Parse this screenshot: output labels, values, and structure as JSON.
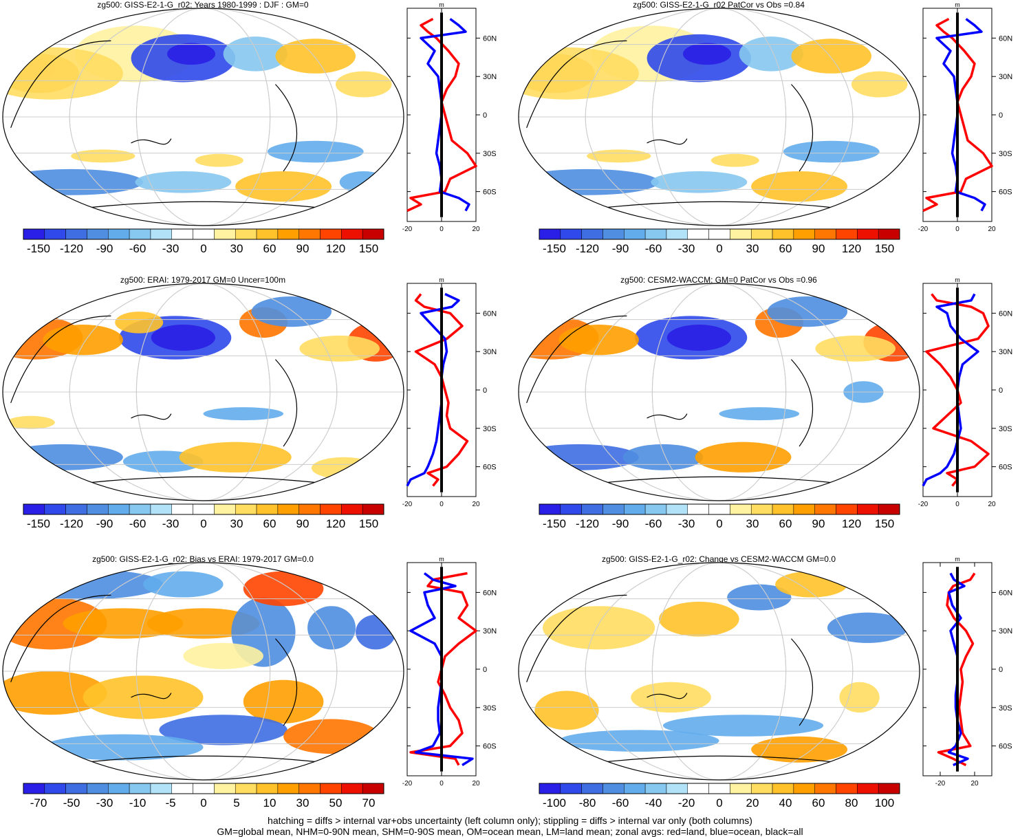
{
  "chart_data": [
    {
      "type": "heatmap",
      "title": "zg500: GISS-E2-1-G_r02: Years 1980-1999 : DJF : GM=0",
      "colorbar_labels": [
        "-150",
        "-120",
        "-90",
        "-60",
        "-30",
        "0",
        "30",
        "60",
        "90",
        "120",
        "150"
      ],
      "zonal_profile": {
        "xlabel": "m",
        "xlim": [
          -20,
          20
        ],
        "xticks": [
          "-20",
          "0",
          "20"
        ],
        "lat_ticks": [
          "60N",
          "30N",
          "0",
          "30S",
          "60S"
        ],
        "series": [
          {
            "name": "land",
            "color": "#ff0000",
            "lat": [
              75,
              70,
              65,
              60,
              50,
              40,
              30,
              20,
              10,
              0,
              -10,
              -20,
              -30,
              -40,
              -50,
              -60,
              -65,
              -70,
              -75
            ],
            "values": [
              -5,
              -12,
              -8,
              -3,
              4,
              10,
              8,
              3,
              0,
              2,
              4,
              6,
              15,
              20,
              5,
              2,
              -18,
              -12,
              -20
            ]
          },
          {
            "name": "ocean",
            "color": "#0000ff",
            "lat": [
              75,
              70,
              65,
              60,
              50,
              40,
              30,
              20,
              10,
              0,
              -10,
              -20,
              -30,
              -40,
              -50,
              -60,
              -65,
              -70,
              -75
            ],
            "values": [
              5,
              10,
              14,
              -12,
              -4,
              -8,
              -2,
              -1,
              0,
              0,
              -1,
              -2,
              -3,
              -1,
              0,
              -1,
              10,
              16,
              14
            ]
          },
          {
            "name": "all",
            "color": "#000000",
            "lat": [
              80,
              -80
            ],
            "values": [
              0,
              0
            ]
          }
        ]
      }
    },
    {
      "type": "heatmap",
      "title": "zg500: GISS-E2-1-G_r02 PatCor vs Obs =0.84",
      "colorbar_labels": [
        "-150",
        "-120",
        "-90",
        "-60",
        "-30",
        "0",
        "30",
        "60",
        "90",
        "120",
        "150"
      ],
      "zonal_profile": {
        "xlabel": "m",
        "xlim": [
          -20,
          20
        ],
        "xticks": [
          "-20",
          "0",
          "20"
        ],
        "lat_ticks": [
          "60N",
          "30N",
          "0",
          "30S",
          "60S"
        ],
        "series": [
          {
            "name": "land",
            "color": "#ff0000",
            "lat": [
              75,
              70,
              65,
              60,
              50,
              40,
              30,
              20,
              10,
              0,
              -10,
              -20,
              -30,
              -40,
              -50,
              -60,
              -65,
              -70,
              -75
            ],
            "values": [
              -5,
              -12,
              -8,
              -3,
              4,
              10,
              8,
              3,
              0,
              2,
              4,
              6,
              15,
              20,
              5,
              2,
              -18,
              -12,
              -20
            ]
          },
          {
            "name": "ocean",
            "color": "#0000ff",
            "lat": [
              75,
              70,
              65,
              60,
              50,
              40,
              30,
              20,
              10,
              0,
              -10,
              -20,
              -30,
              -40,
              -50,
              -60,
              -65,
              -70,
              -75
            ],
            "values": [
              5,
              10,
              14,
              -12,
              -4,
              -8,
              -2,
              -1,
              0,
              0,
              -1,
              -2,
              -3,
              -1,
              0,
              -1,
              10,
              16,
              14
            ]
          },
          {
            "name": "all",
            "color": "#000000",
            "lat": [
              80,
              -80
            ],
            "values": [
              0,
              0
            ]
          }
        ]
      }
    },
    {
      "type": "heatmap",
      "title": "zg500: ERAI: 1979-2017 GM=0 Uncer=100m",
      "colorbar_labels": [
        "-150",
        "-120",
        "-90",
        "-60",
        "-30",
        "0",
        "30",
        "60",
        "90",
        "120",
        "150"
      ],
      "zonal_profile": {
        "xlabel": "m",
        "xlim": [
          -20,
          20
        ],
        "xticks": [
          "-20",
          "0",
          "20"
        ],
        "lat_ticks": [
          "60N",
          "30N",
          "0",
          "30S",
          "60S"
        ],
        "series": [
          {
            "name": "land",
            "color": "#ff0000",
            "lat": [
              75,
              70,
              65,
              60,
              50,
              40,
              30,
              20,
              10,
              0,
              -10,
              -20,
              -30,
              -40,
              -50,
              -60,
              -65,
              -70,
              -75
            ],
            "values": [
              -12,
              -15,
              -10,
              5,
              12,
              3,
              -15,
              -4,
              0,
              2,
              4,
              3,
              5,
              15,
              10,
              3,
              -8,
              -2,
              -5
            ]
          },
          {
            "name": "ocean",
            "color": "#0000ff",
            "lat": [
              75,
              70,
              65,
              60,
              50,
              40,
              30,
              20,
              10,
              0,
              -10,
              -20,
              -30,
              -40,
              -50,
              -60,
              -65,
              -70,
              -75
            ],
            "values": [
              2,
              10,
              6,
              -12,
              -5,
              2,
              3,
              1,
              0,
              0,
              0,
              -1,
              -2,
              -3,
              -5,
              -8,
              -10,
              -18,
              -20
            ]
          },
          {
            "name": "all",
            "color": "#000000",
            "lat": [
              80,
              -80
            ],
            "values": [
              0,
              0
            ]
          }
        ]
      }
    },
    {
      "type": "heatmap",
      "title": "zg500: CESM2-WACCM: GM=0 PatCor vs Obs =0.96",
      "colorbar_labels": [
        "-150",
        "-120",
        "-90",
        "-60",
        "-30",
        "0",
        "30",
        "60",
        "90",
        "120",
        "150"
      ],
      "zonal_profile": {
        "xlabel": "m",
        "xlim": [
          -20,
          20
        ],
        "xticks": [
          "-20",
          "0",
          "20"
        ],
        "lat_ticks": [
          "60N",
          "30N",
          "0",
          "30S",
          "60S"
        ],
        "series": [
          {
            "name": "land",
            "color": "#ff0000",
            "lat": [
              75,
              70,
              65,
              60,
              50,
              40,
              30,
              20,
              10,
              0,
              -10,
              -20,
              -30,
              -40,
              -50,
              -60,
              -65,
              -70,
              -75
            ],
            "values": [
              -15,
              -12,
              8,
              15,
              18,
              12,
              -18,
              -10,
              -4,
              0,
              2,
              -6,
              -14,
              8,
              18,
              10,
              -6,
              0,
              -3
            ]
          },
          {
            "name": "ocean",
            "color": "#0000ff",
            "lat": [
              75,
              70,
              65,
              60,
              50,
              40,
              30,
              20,
              10,
              0,
              -10,
              -20,
              -30,
              -40,
              -50,
              -60,
              -65,
              -70,
              -75
            ],
            "values": [
              10,
              8,
              -12,
              -6,
              -4,
              2,
              12,
              3,
              1,
              0,
              0,
              1,
              2,
              0,
              -2,
              -6,
              -10,
              -18,
              -20
            ]
          },
          {
            "name": "all",
            "color": "#000000",
            "lat": [
              80,
              -80
            ],
            "values": [
              0,
              0
            ]
          }
        ]
      }
    },
    {
      "type": "heatmap",
      "title": "zg500: GISS-E2-1-G_r02: Bias vs ERAI: 1979-2017 GM=0.0",
      "colorbar_labels": [
        "-70",
        "-50",
        "-30",
        "-10",
        "-5",
        "0",
        "5",
        "10",
        "30",
        "50",
        "70"
      ],
      "zonal_profile": {
        "xlabel": "m",
        "xlim": [
          -20,
          20
        ],
        "xticks": [
          "-20",
          "0",
          "20"
        ],
        "lat_ticks": [
          "60N",
          "30N",
          "0",
          "30S",
          "60S"
        ],
        "series": [
          {
            "name": "land",
            "color": "#ff0000",
            "lat": [
              75,
              70,
              65,
              60,
              50,
              40,
              30,
              20,
              10,
              0,
              -10,
              -20,
              -30,
              -40,
              -50,
              -60,
              -65,
              -70,
              -75
            ],
            "values": [
              15,
              -5,
              -8,
              12,
              15,
              10,
              20,
              10,
              2,
              0,
              -2,
              2,
              5,
              10,
              12,
              5,
              -18,
              8,
              10
            ]
          },
          {
            "name": "ocean",
            "color": "#0000ff",
            "lat": [
              75,
              70,
              65,
              60,
              50,
              40,
              30,
              20,
              10,
              0,
              -10,
              -20,
              -30,
              -40,
              -50,
              -60,
              -65,
              -70,
              -75
            ],
            "values": [
              -10,
              -5,
              8,
              -10,
              -8,
              -4,
              -18,
              -4,
              0,
              0,
              0,
              -1,
              -2,
              -2,
              -1,
              -5,
              -15,
              18,
              12
            ]
          },
          {
            "name": "all",
            "color": "#000000",
            "lat": [
              80,
              -80
            ],
            "values": [
              0,
              0
            ]
          }
        ]
      }
    },
    {
      "type": "heatmap",
      "title": "zg500: GISS-E2-1-G_r02: Change vs CESM2-WACCM GM=0.0",
      "colorbar_labels": [
        "-100",
        "-80",
        "-60",
        "-40",
        "-20",
        "0",
        "20",
        "40",
        "60",
        "80",
        "100"
      ],
      "zonal_profile": {
        "xlabel": "m",
        "xlim": [
          -40,
          40
        ],
        "xticks": [
          "-20",
          "20"
        ],
        "lat_ticks": [
          "60N",
          "30N",
          "0",
          "30S",
          "60S"
        ],
        "series": [
          {
            "name": "land",
            "color": "#ff0000",
            "lat": [
              75,
              70,
              65,
              60,
              50,
              40,
              30,
              20,
              10,
              0,
              -10,
              -20,
              -30,
              -40,
              -50,
              -60,
              -65,
              -70,
              -75
            ],
            "values": [
              20,
              15,
              -5,
              -10,
              -12,
              -4,
              10,
              18,
              10,
              4,
              6,
              4,
              2,
              4,
              6,
              15,
              -22,
              -5,
              10
            ]
          },
          {
            "name": "ocean",
            "color": "#0000ff",
            "lat": [
              75,
              70,
              65,
              60,
              50,
              40,
              30,
              20,
              10,
              0,
              -10,
              -20,
              -30,
              -40,
              -50,
              -60,
              -65,
              -70,
              -75
            ],
            "values": [
              -8,
              -4,
              8,
              -10,
              -6,
              4,
              -8,
              -4,
              0,
              0,
              0,
              -2,
              -2,
              0,
              4,
              -2,
              -10,
              12,
              -5
            ]
          },
          {
            "name": "all",
            "color": "#000000",
            "lat": [
              80,
              -80
            ],
            "values": [
              0,
              0
            ]
          }
        ]
      }
    }
  ],
  "footnote": {
    "line1": "hatching = diffs > internal var+obs uncertainty (left column only); stippling = diffs > internal var only (both columns)",
    "line2": "GM=global mean, NHM=0-90N mean, SHM=0-90S mean, OM=ocean mean, LM=land mean; zonal avgs: red=land, blue=ocean, black=all"
  },
  "colors": {
    "scale": [
      "#2a1fe6",
      "#2f49ea",
      "#3e6ee2",
      "#4f8ee0",
      "#62acec",
      "#86c8f0",
      "#b2e2f8",
      "#ffffff",
      "#ffffff",
      "#fff2a0",
      "#ffdd60",
      "#ffc22a",
      "#ff9f00",
      "#ff7600",
      "#ff4400",
      "#ed1000",
      "#c80000"
    ],
    "land_line": "#ff0000",
    "ocean_line": "#0000ff",
    "all_line": "#000000"
  }
}
